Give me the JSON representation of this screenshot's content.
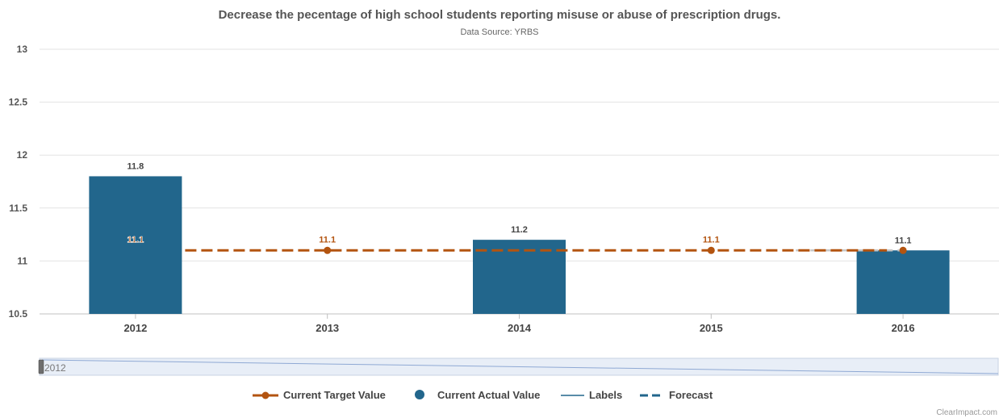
{
  "colors": {
    "actual": "#22668c",
    "target": "#b35410",
    "forecast": "#c8c8c8",
    "grid": "#e3e3e3"
  },
  "chart_data": {
    "type": "bar",
    "title": "Decrease the pecentage of high school students reporting misuse or abuse of prescription drugs.",
    "subtitle": "Data Source: YRBS",
    "categories": [
      "2012",
      "2013",
      "2014",
      "2015",
      "2016"
    ],
    "ylim": [
      10.5,
      13
    ],
    "yticks": [
      "10.5",
      "11",
      "11.5",
      "12",
      "12.5",
      "13"
    ],
    "grid": true,
    "legend_position": "bottom",
    "series": [
      {
        "name": "Current Actual Value",
        "type": "bar",
        "values": [
          11.8,
          null,
          11.2,
          null,
          11.1
        ],
        "labels": [
          "11.8",
          "",
          "11.2",
          "",
          "11.1"
        ]
      },
      {
        "name": "Current Target Value",
        "type": "line",
        "values": [
          11.1,
          11.1,
          11.1,
          11.1,
          11.1
        ],
        "labels": [
          "11.1",
          "11.1",
          "",
          "11.1",
          ""
        ]
      },
      {
        "name": "Forecast",
        "type": "line",
        "values": [
          11.1,
          11.1,
          11.1,
          11.1,
          11.1
        ]
      }
    ]
  },
  "legend": [
    {
      "label": "Current Target Value",
      "symbol": "line-dot"
    },
    {
      "label": "Current Actual Value",
      "symbol": "dot"
    },
    {
      "label": "Labels",
      "symbol": "line"
    },
    {
      "label": "Forecast",
      "symbol": "dash"
    }
  ],
  "navigator": {
    "label": "2012"
  },
  "credit": "ClearImpact.com"
}
